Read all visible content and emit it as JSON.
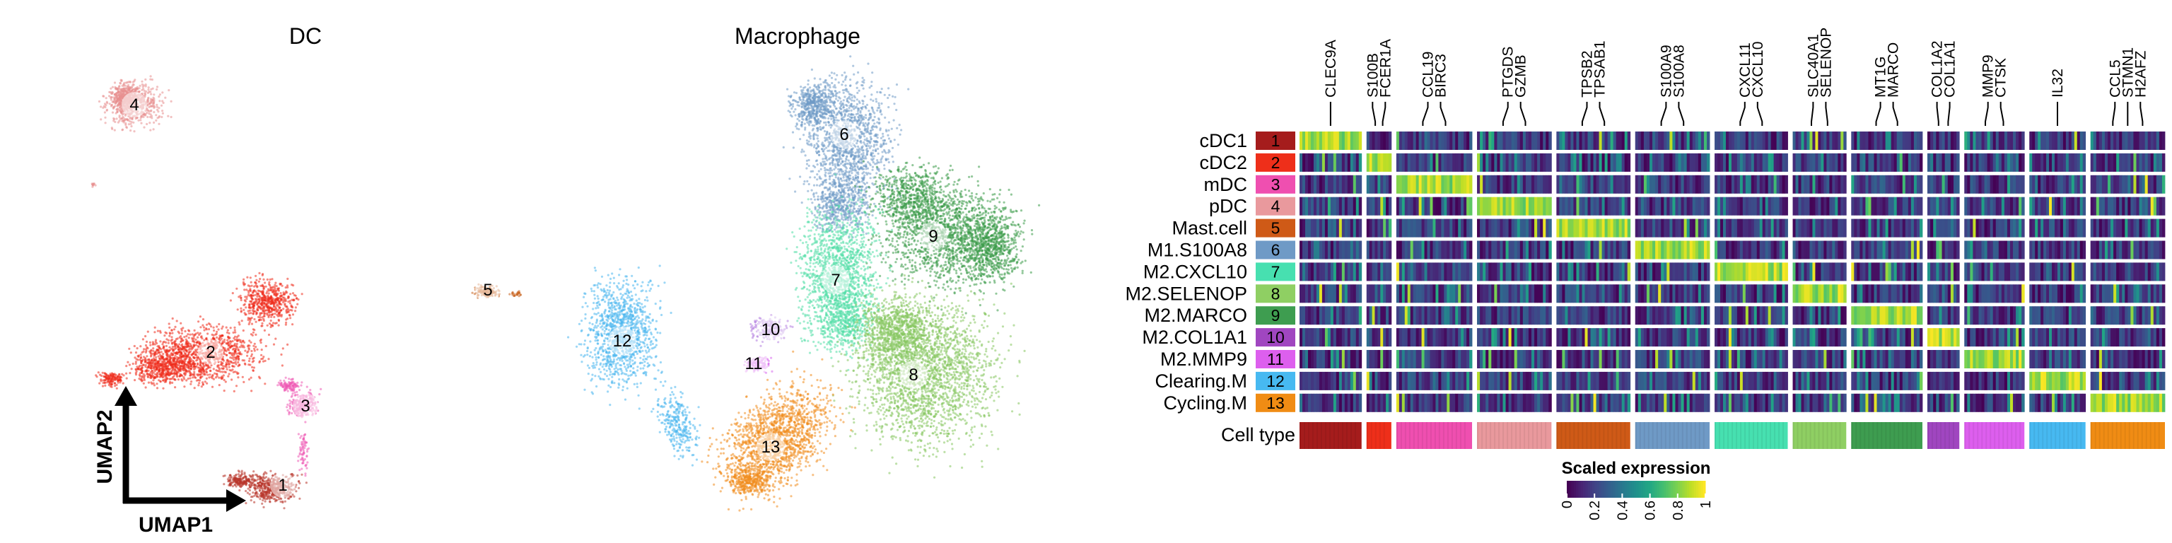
{
  "chart_data": [
    {
      "type": "scatter",
      "panel": "umap-dc",
      "title": "DC",
      "xlabel": "UMAP1",
      "ylabel": "UMAP2",
      "clusters": [
        {
          "label": "4",
          "name": "pDC",
          "color": "#e88f8f"
        },
        {
          "label": "2",
          "name": "cDC2",
          "color": "#ef2b1c"
        },
        {
          "label": "3",
          "name": "mDC",
          "color": "#ef59b5"
        },
        {
          "label": "1",
          "name": "cDC1",
          "color": "#b8342a"
        },
        {
          "label": "5",
          "name": "Mast.cell",
          "color": "#c9621e"
        }
      ]
    },
    {
      "type": "scatter",
      "panel": "umap-macrophage",
      "title": "Macrophage",
      "clusters": [
        {
          "label": "6",
          "name": "M1.S100A8",
          "color": "#6f9ac6"
        },
        {
          "label": "9",
          "name": "M2.MARCO",
          "color": "#3b9a49"
        },
        {
          "label": "7",
          "name": "M2.CXCL10",
          "color": "#53dfa8"
        },
        {
          "label": "8",
          "name": "M2.SELENOP",
          "color": "#86c660"
        },
        {
          "label": "12",
          "name": "Clearing.M",
          "color": "#4ab6ee"
        },
        {
          "label": "10",
          "name": "M2.COL1A1",
          "color": "#b47fe0"
        },
        {
          "label": "11",
          "name": "M2.MMP9",
          "color": "#d96bee"
        },
        {
          "label": "13",
          "name": "Cycling.M",
          "color": "#f08c1d"
        }
      ]
    },
    {
      "type": "heatmap",
      "panel": "marker-heatmap",
      "rows": [
        {
          "name": "cDC1",
          "id": "1",
          "color": "#a51c1c"
        },
        {
          "name": "cDC2",
          "id": "2",
          "color": "#ee2f1a"
        },
        {
          "name": "mDC",
          "id": "3",
          "color": "#ef4fb0"
        },
        {
          "name": "pDC",
          "id": "4",
          "color": "#e9999d"
        },
        {
          "name": "Mast.cell",
          "id": "5",
          "color": "#cf5a17"
        },
        {
          "name": "M1.S100A8",
          "id": "6",
          "color": "#6f9ac6"
        },
        {
          "name": "M2.CXCL10",
          "id": "7",
          "color": "#47e0b0"
        },
        {
          "name": "M2.SELENOP",
          "id": "8",
          "color": "#8fcf63"
        },
        {
          "name": "M2.MARCO",
          "id": "9",
          "color": "#3e9d50"
        },
        {
          "name": "M2.COL1A1",
          "id": "10",
          "color": "#a046c0"
        },
        {
          "name": "M2.MMP9",
          "id": "11",
          "color": "#dd5fee"
        },
        {
          "name": "Clearing.M",
          "id": "12",
          "color": "#47b9f1"
        },
        {
          "name": "Cycling.M",
          "id": "13",
          "color": "#f08c14"
        }
      ],
      "column_groups": [
        "cDC1",
        "cDC2",
        "mDC",
        "pDC",
        "Mast.cell",
        "M1.S100A8",
        "M2.CXCL10",
        "M2.SELENOP",
        "M2.MARCO",
        "M2.COL1A1",
        "M2.MMP9",
        "Clearing.M",
        "Cycling.M"
      ],
      "column_group_weights": [
        9.5,
        3.8,
        11.6,
        11.4,
        11.3,
        11.4,
        11.2,
        8.2,
        10.9,
        4.9,
        9.2,
        8.6,
        11.4
      ],
      "highlight": [
        0,
        1,
        2,
        3,
        4,
        5,
        6,
        7,
        8,
        9,
        10,
        11,
        12
      ],
      "genes": [
        {
          "label": "CLEC9A",
          "group": 0
        },
        {
          "label": "S100B",
          "group": 1
        },
        {
          "label": "FCER1A",
          "group": 1
        },
        {
          "label": "CCL19",
          "group": 2
        },
        {
          "label": "BIRC3",
          "group": 2
        },
        {
          "label": "PTGDS",
          "group": 3
        },
        {
          "label": "GZMB",
          "group": 3
        },
        {
          "label": "TPSB2",
          "group": 4
        },
        {
          "label": "TPSAB1",
          "group": 4
        },
        {
          "label": "S100A9",
          "group": 5
        },
        {
          "label": "S100A8",
          "group": 5
        },
        {
          "label": "CXCL11",
          "group": 6
        },
        {
          "label": "CXCL10",
          "group": 6
        },
        {
          "label": "SLC40A1",
          "group": 7
        },
        {
          "label": "SELENOP",
          "group": 7
        },
        {
          "label": "MT1G",
          "group": 8
        },
        {
          "label": "MARCO",
          "group": 8
        },
        {
          "label": "COL1A2",
          "group": 9
        },
        {
          "label": "COL1A1",
          "group": 9
        },
        {
          "label": "MMP9",
          "group": 10
        },
        {
          "label": "CTSK",
          "group": 10
        },
        {
          "label": "IL32",
          "group": 11
        },
        {
          "label": "CCL5",
          "group": 12
        },
        {
          "label": "STMN1",
          "group": 12
        },
        {
          "label": "H2AFZ",
          "group": 12
        }
      ],
      "annotation_label": "Cell type",
      "colorbar": {
        "title": "Scaled expression",
        "range": [
          0,
          1
        ],
        "ticks": [
          "0",
          "0.2",
          "0.4",
          "0.6",
          "0.8",
          "1"
        ],
        "colormap": "viridis"
      }
    }
  ]
}
